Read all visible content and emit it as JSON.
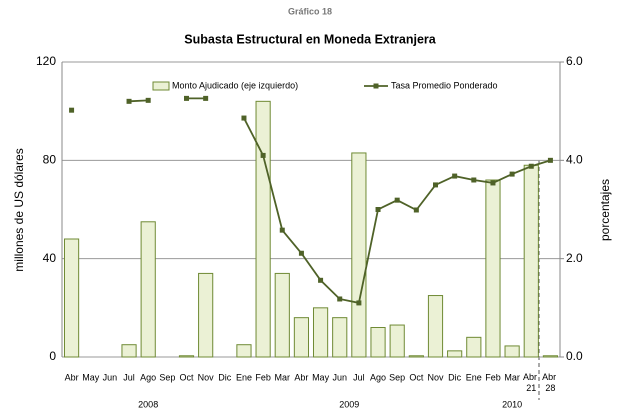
{
  "chart_data": {
    "type": "bar_line",
    "supertitle": "Gráfico 18",
    "title": "Subasta Estructural en Moneda Extranjera",
    "y_label": "millones de US dólares",
    "y2_label": "porcentajes",
    "categories": [
      "Abr",
      "May",
      "Jun",
      "Jul",
      "Ago",
      "Sep",
      "Oct",
      "Nov",
      "Dic",
      "Ene",
      "Feb",
      "Mar",
      "Abr",
      "May",
      "Jun",
      "Jul",
      "Ago",
      "Sep",
      "Oct",
      "Nov",
      "Dic",
      "Ene",
      "Feb",
      "Mar",
      "Abr 21",
      "Abr 28"
    ],
    "years": [
      "2008",
      "2009",
      "2010"
    ],
    "series": [
      {
        "name": "Monto Ajudicado (eje izquierdo)",
        "type": "bar",
        "color": "#ebf1d5",
        "stroke": "#6f8a34",
        "values": [
          48,
          null,
          null,
          5,
          55,
          null,
          0.5,
          34,
          null,
          5,
          104,
          34,
          16,
          20,
          16,
          83,
          12,
          13,
          0.5,
          25,
          2.5,
          8,
          72,
          4.5,
          78,
          0.5
        ]
      },
      {
        "name": "Tasa Promedio Ponderado",
        "type": "line",
        "axis": "y2",
        "color": "#4f6228",
        "values": [
          5.02,
          null,
          null,
          5.2,
          5.22,
          null,
          5.26,
          5.26,
          null,
          4.86,
          4.1,
          2.58,
          2.11,
          1.56,
          1.18,
          1.1,
          3.0,
          3.19,
          2.99,
          3.5,
          3.68,
          3.6,
          3.54,
          3.72,
          3.88,
          4.0
        ]
      }
    ],
    "ylim": [
      0,
      120
    ],
    "yticks": [
      0,
      40,
      80,
      120
    ],
    "y2lim": [
      0,
      6
    ],
    "y2ticks": [
      {
        "value": 0,
        "label": "0.0"
      },
      {
        "value": 2,
        "label": "2.0"
      },
      {
        "value": 4,
        "label": "4.0"
      },
      {
        "value": 6,
        "label": "6.0"
      }
    ],
    "grid": true
  }
}
